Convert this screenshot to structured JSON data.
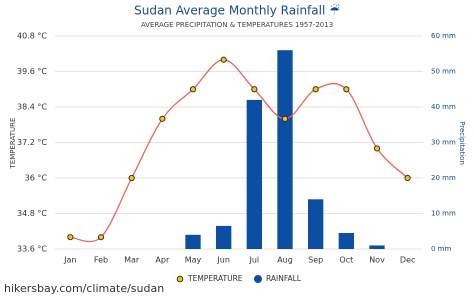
{
  "chart_data": {
    "type": "bar-line",
    "title": "Sudan Average Monthly Rainfall ☔",
    "subtitle": "AVERAGE PRECIPITATION & TEMPERATURES 1957-2013",
    "y_label": "TEMPERATURE",
    "y2_label": "Precipitation",
    "footer": "hikersbay.com/climate/sudan",
    "categories": [
      "Jan",
      "Feb",
      "Mar",
      "Apr",
      "May",
      "Jun",
      "Jul",
      "Aug",
      "Sep",
      "Oct",
      "Nov",
      "Dec"
    ],
    "series": [
      {
        "name": "TEMPERATURE",
        "color": "#e8665a",
        "values": [
          34.0,
          34.0,
          36.0,
          38.0,
          39.0,
          40.0,
          39.0,
          38.0,
          39.0,
          39.0,
          37.0,
          36.0
        ]
      },
      {
        "name": "RAINFALL",
        "color": "#0b4ea2",
        "axis": "y2",
        "values": [
          0,
          0,
          0,
          0,
          4,
          6.5,
          42,
          56,
          14,
          4.5,
          1,
          0
        ]
      }
    ],
    "ylim": [
      33.6,
      40.8
    ],
    "yticks": [
      {
        "value": 33.6,
        "label": "33.6 °C"
      },
      {
        "value": 34.8,
        "label": "34.8 °C"
      },
      {
        "value": 36,
        "label": "36 °C"
      },
      {
        "value": 37.2,
        "label": "37.2 °C"
      },
      {
        "value": 38.4,
        "label": "38.4 °C"
      },
      {
        "value": 39.6,
        "label": "39.6 °C"
      },
      {
        "value": 40.8,
        "label": "40.8 °C"
      }
    ],
    "y2lim": [
      0,
      60
    ],
    "y2ticks": [
      {
        "value": 0,
        "label": "0 mm"
      },
      {
        "value": 10,
        "label": "10 mm"
      },
      {
        "value": 20,
        "label": "20 mm"
      },
      {
        "value": 30,
        "label": "30 mm"
      },
      {
        "value": 40,
        "label": "40 mm"
      },
      {
        "value": 50,
        "label": "50 mm"
      },
      {
        "value": 60,
        "label": "60 mm"
      }
    ],
    "grid": true
  }
}
